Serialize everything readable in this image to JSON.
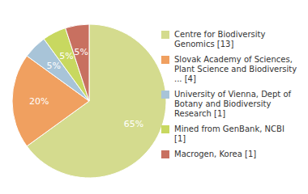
{
  "chart_data": {
    "type": "pie",
    "categories": [
      "Centre for Biodiversity\nGenomics [13]",
      "Slovak Academy of Sciences,\nPlant Science and Biodiversity\n... [4]",
      "University of Vienna, Dept of\nBotany and Biodiversity\nResearch [1]",
      "Mined from GenBank, NCBI [1]",
      "Macrogen, Korea [1]"
    ],
    "values": [
      65,
      20,
      5,
      5,
      5
    ],
    "value_labels": [
      "65%",
      "20%",
      "5%",
      "5%",
      "5%"
    ],
    "colors": [
      "#d4db8e",
      "#f0a060",
      "#a8c4d8",
      "#c8d860",
      "#c87060"
    ],
    "data_labels": true,
    "legend": "right"
  }
}
